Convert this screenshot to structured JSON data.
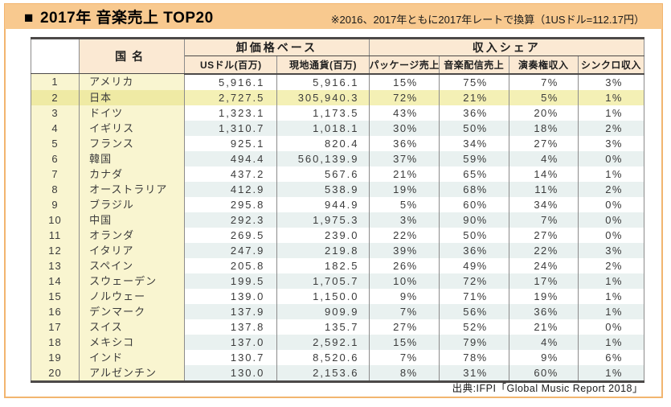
{
  "title_bar": {
    "marker": "■",
    "title": "2017年 音楽売上 TOP20",
    "note": "※2016、2017年ともに2017年レートで換算（1USドル=112.17円）"
  },
  "source": "出典:IFPI「Global Music Report 2018」",
  "table": {
    "headers": {
      "country": "国名",
      "wholesale_group": "卸価格ベース",
      "usd": "USドル(百万)",
      "local": "現地通貨(百万)",
      "share_group": "収入シェア",
      "package": "パッケージ売上",
      "digital": "音楽配信売上",
      "performance": "演奏権収入",
      "sync": "シンクロ収入"
    },
    "rows": [
      {
        "rank": "1",
        "country": "アメリカ",
        "usd": "5,916.1",
        "local": "5,916.1",
        "package": "15%",
        "digital": "75%",
        "performance": "7%",
        "sync": "3%",
        "highlight": false
      },
      {
        "rank": "2",
        "country": "日本",
        "usd": "2,727.5",
        "local": "305,940.3",
        "package": "72%",
        "digital": "21%",
        "performance": "5%",
        "sync": "1%",
        "highlight": true
      },
      {
        "rank": "3",
        "country": "ドイツ",
        "usd": "1,323.1",
        "local": "1,173.5",
        "package": "43%",
        "digital": "36%",
        "performance": "20%",
        "sync": "1%",
        "highlight": false
      },
      {
        "rank": "4",
        "country": "イギリス",
        "usd": "1,310.7",
        "local": "1,018.1",
        "package": "30%",
        "digital": "50%",
        "performance": "18%",
        "sync": "2%",
        "highlight": false
      },
      {
        "rank": "5",
        "country": "フランス",
        "usd": "925.1",
        "local": "820.4",
        "package": "36%",
        "digital": "34%",
        "performance": "27%",
        "sync": "3%",
        "highlight": false
      },
      {
        "rank": "6",
        "country": "韓国",
        "usd": "494.4",
        "local": "560,139.9",
        "package": "37%",
        "digital": "59%",
        "performance": "4%",
        "sync": "0%",
        "highlight": false
      },
      {
        "rank": "7",
        "country": "カナダ",
        "usd": "437.2",
        "local": "567.6",
        "package": "21%",
        "digital": "65%",
        "performance": "14%",
        "sync": "1%",
        "highlight": false
      },
      {
        "rank": "8",
        "country": "オーストラリア",
        "usd": "412.9",
        "local": "538.9",
        "package": "19%",
        "digital": "68%",
        "performance": "11%",
        "sync": "2%",
        "highlight": false
      },
      {
        "rank": "9",
        "country": "ブラジル",
        "usd": "295.8",
        "local": "944.9",
        "package": "5%",
        "digital": "60%",
        "performance": "34%",
        "sync": "0%",
        "highlight": false
      },
      {
        "rank": "10",
        "country": "中国",
        "usd": "292.3",
        "local": "1,975.3",
        "package": "3%",
        "digital": "90%",
        "performance": "7%",
        "sync": "0%",
        "highlight": false
      },
      {
        "rank": "11",
        "country": "オランダ",
        "usd": "269.5",
        "local": "239.0",
        "package": "22%",
        "digital": "50%",
        "performance": "27%",
        "sync": "0%",
        "highlight": false
      },
      {
        "rank": "12",
        "country": "イタリア",
        "usd": "247.9",
        "local": "219.8",
        "package": "39%",
        "digital": "36%",
        "performance": "22%",
        "sync": "3%",
        "highlight": false
      },
      {
        "rank": "13",
        "country": "スペイン",
        "usd": "205.8",
        "local": "182.5",
        "package": "26%",
        "digital": "49%",
        "performance": "24%",
        "sync": "2%",
        "highlight": false
      },
      {
        "rank": "14",
        "country": "スウェーデン",
        "usd": "199.5",
        "local": "1,705.7",
        "package": "10%",
        "digital": "72%",
        "performance": "17%",
        "sync": "1%",
        "highlight": false
      },
      {
        "rank": "15",
        "country": "ノルウェー",
        "usd": "139.0",
        "local": "1,150.0",
        "package": "9%",
        "digital": "71%",
        "performance": "19%",
        "sync": "1%",
        "highlight": false
      },
      {
        "rank": "16",
        "country": "デンマーク",
        "usd": "137.9",
        "local": "909.9",
        "package": "7%",
        "digital": "56%",
        "performance": "36%",
        "sync": "1%",
        "highlight": false
      },
      {
        "rank": "17",
        "country": "スイス",
        "usd": "137.8",
        "local": "135.7",
        "package": "27%",
        "digital": "52%",
        "performance": "21%",
        "sync": "0%",
        "highlight": false
      },
      {
        "rank": "18",
        "country": "メキシコ",
        "usd": "137.0",
        "local": "2,592.1",
        "package": "15%",
        "digital": "79%",
        "performance": "4%",
        "sync": "1%",
        "highlight": false
      },
      {
        "rank": "19",
        "country": "インド",
        "usd": "130.7",
        "local": "8,520.6",
        "package": "7%",
        "digital": "78%",
        "performance": "9%",
        "sync": "6%",
        "highlight": false
      },
      {
        "rank": "20",
        "country": "アルゼンチン",
        "usd": "130.0",
        "local": "2,153.6",
        "package": "8%",
        "digital": "31%",
        "performance": "60%",
        "sync": "1%",
        "highlight": false
      }
    ]
  },
  "colors": {
    "frame": "#f2b56f",
    "title_bar_bg": "#f8c98f",
    "header_cell_bg": "#fbe9d3",
    "left_col_bg": "#f9f5d0",
    "hl_left_bg": "#efeaa4",
    "hl_data_bg": "#f4f0b5",
    "stripe_bg": "#e9f1f0",
    "border_dark": "#4c4948",
    "border_mid": "#8c8b8b",
    "text": "#3b3b3b"
  }
}
